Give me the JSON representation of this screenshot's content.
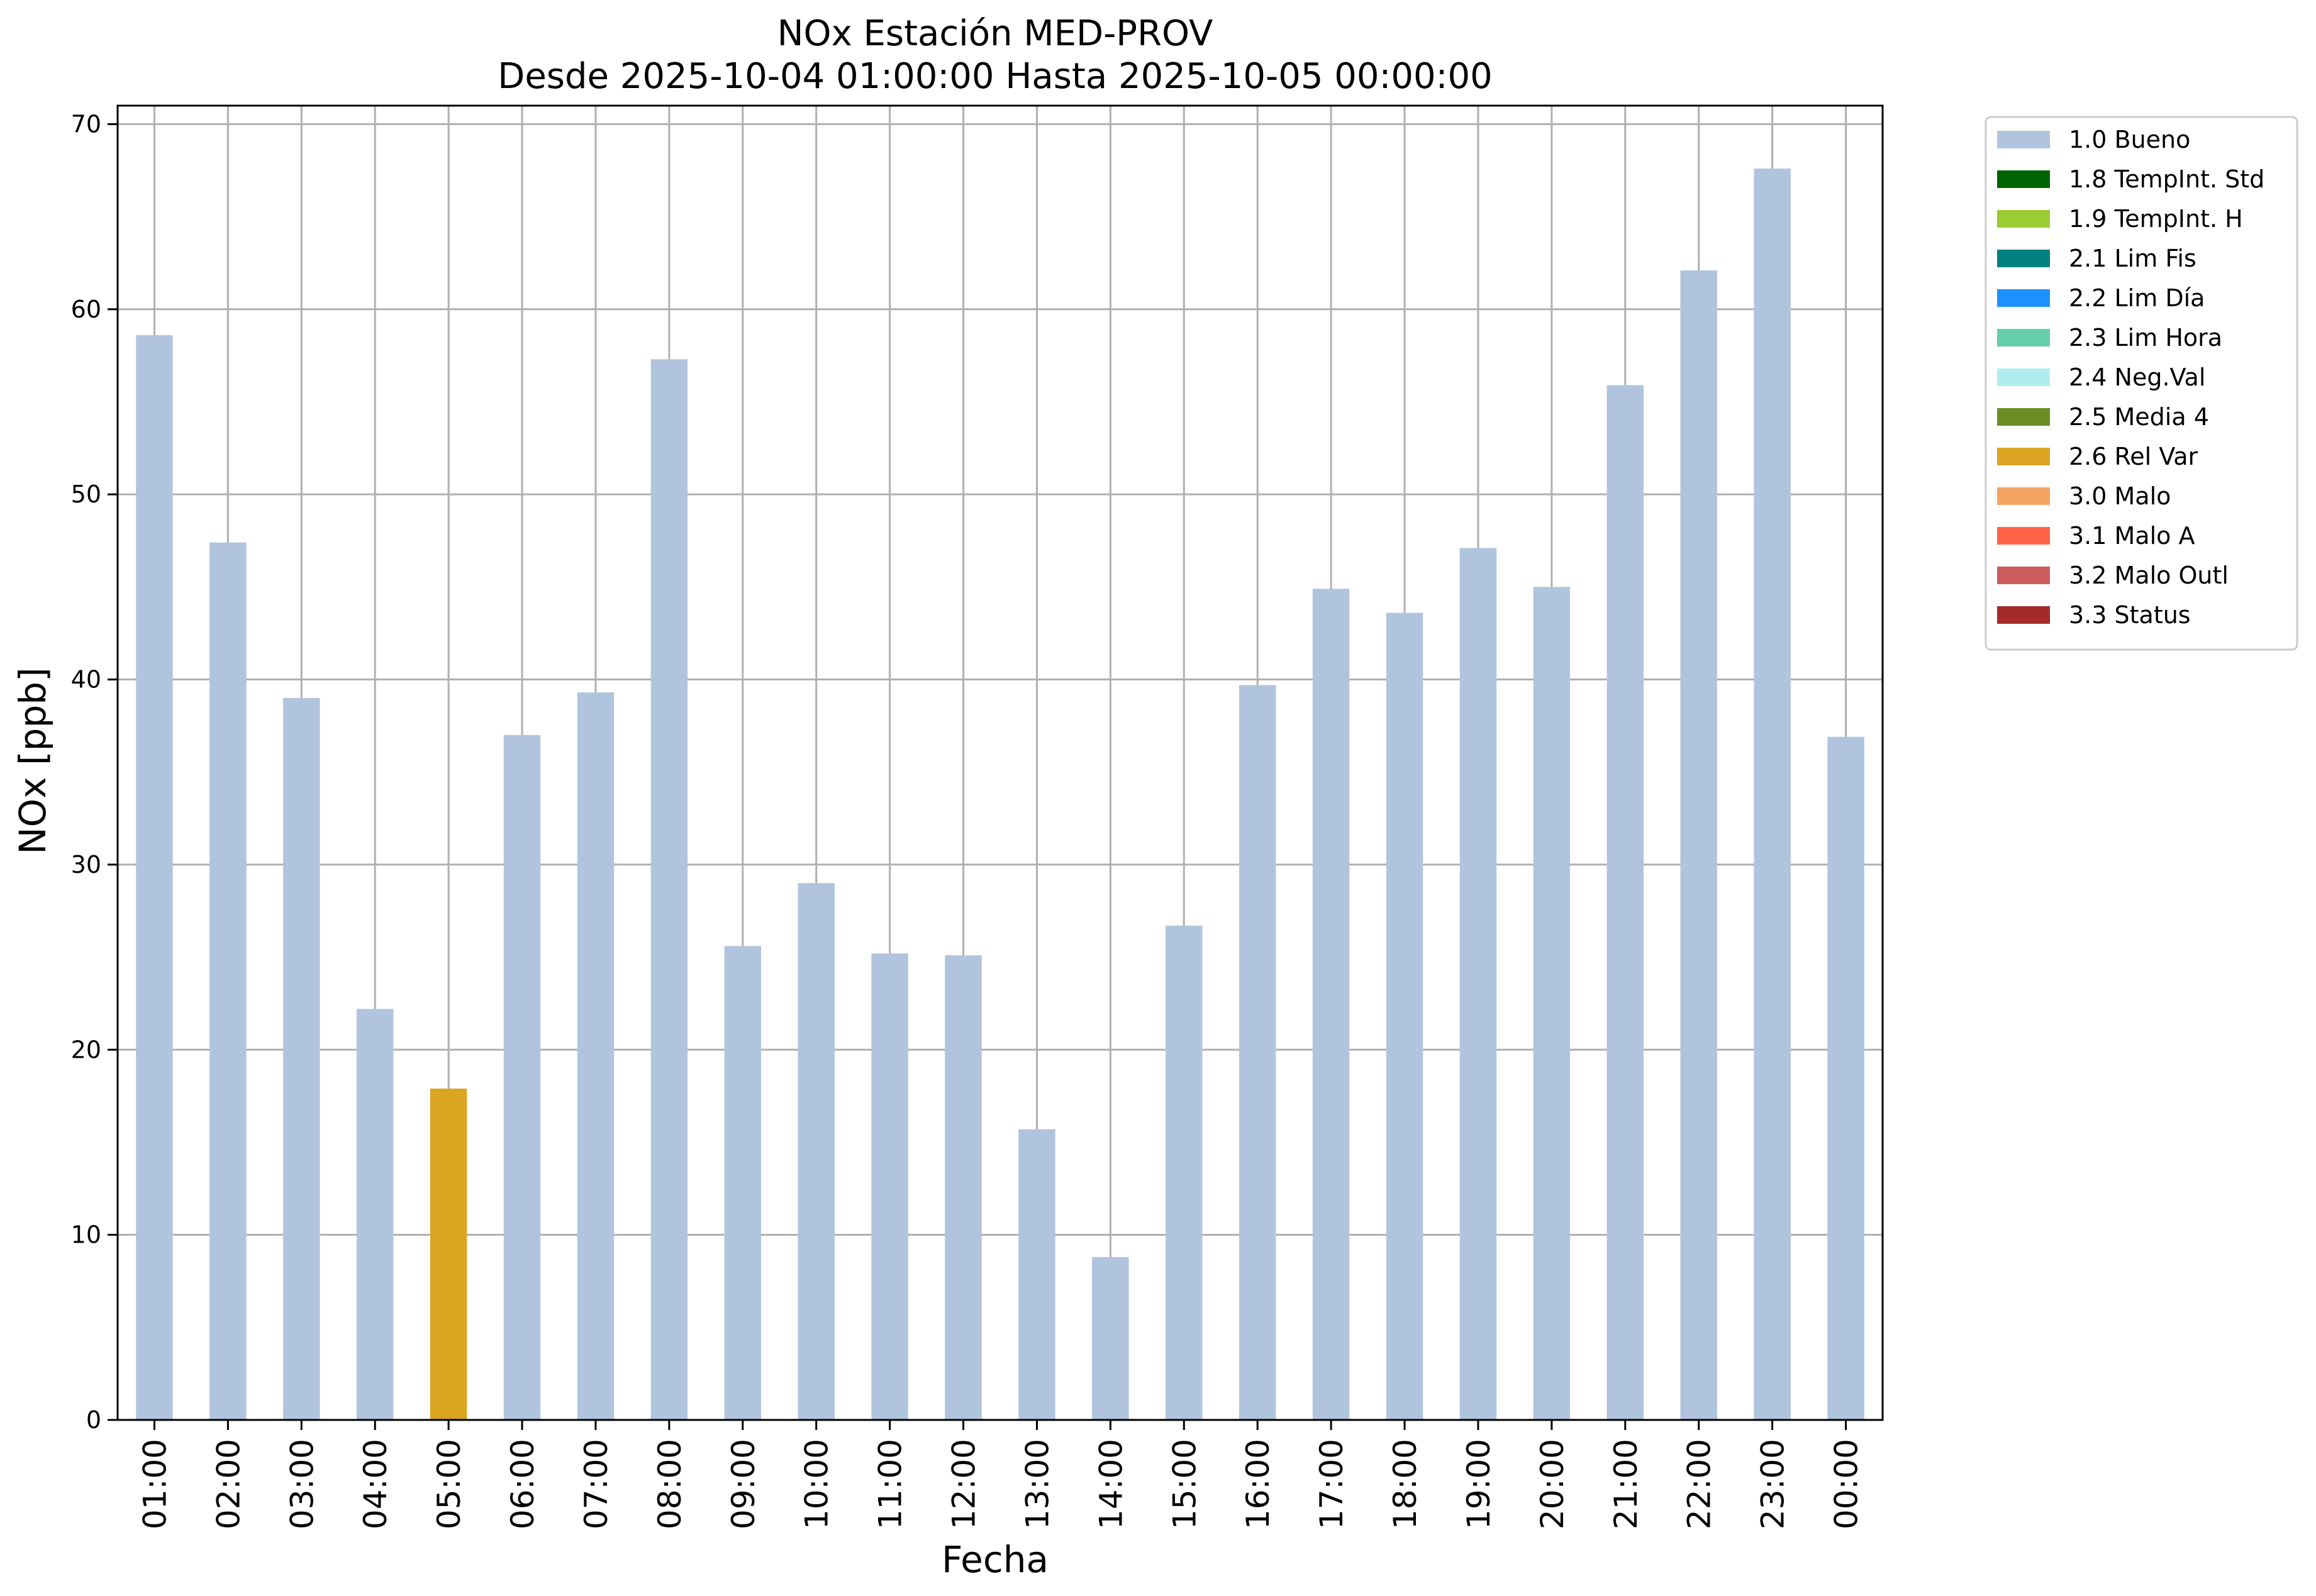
{
  "chart_data": {
    "type": "bar",
    "title": [
      "NOx Estación MED-PROV",
      "Desde 2025-10-04 01:00:00 Hasta 2025-10-05 00:00:00"
    ],
    "xlabel": "Fecha",
    "ylabel": "NOx [ppb]",
    "ylim": [
      0,
      71
    ],
    "yticks": [
      0,
      10,
      20,
      30,
      40,
      50,
      60,
      70
    ],
    "grid": true,
    "legend_placement": "outside upper right",
    "categories": [
      "01:00",
      "02:00",
      "03:00",
      "04:00",
      "05:00",
      "06:00",
      "07:00",
      "08:00",
      "09:00",
      "10:00",
      "11:00",
      "12:00",
      "13:00",
      "14:00",
      "15:00",
      "16:00",
      "17:00",
      "18:00",
      "19:00",
      "20:00",
      "21:00",
      "22:00",
      "23:00",
      "00:00"
    ],
    "values": [
      58.6,
      47.4,
      39.0,
      22.2,
      17.9,
      37.0,
      39.3,
      57.3,
      25.6,
      29.0,
      25.2,
      25.1,
      15.7,
      8.8,
      26.7,
      39.7,
      44.9,
      43.6,
      47.1,
      45.0,
      55.9,
      62.1,
      67.6,
      36.9
    ],
    "flags": [
      "1.0 Bueno",
      "1.0 Bueno",
      "1.0 Bueno",
      "1.0 Bueno",
      "2.6 Rel Var",
      "1.0 Bueno",
      "1.0 Bueno",
      "1.0 Bueno",
      "1.0 Bueno",
      "1.0 Bueno",
      "1.0 Bueno",
      "1.0 Bueno",
      "1.0 Bueno",
      "1.0 Bueno",
      "1.0 Bueno",
      "1.0 Bueno",
      "1.0 Bueno",
      "1.0 Bueno",
      "1.0 Bueno",
      "1.0 Bueno",
      "1.0 Bueno",
      "1.0 Bueno",
      "1.0 Bueno",
      "1.0 Bueno"
    ],
    "legend": [
      {
        "label": "1.0 Bueno",
        "color": "#b0c4de"
      },
      {
        "label": "1.8 TempInt. Std",
        "color": "#006400"
      },
      {
        "label": "1.9 TempInt. H",
        "color": "#9acd32"
      },
      {
        "label": "2.1 Lim Fis",
        "color": "#008080"
      },
      {
        "label": "2.2 Lim Día",
        "color": "#1e90ff"
      },
      {
        "label": "2.3 Lim Hora",
        "color": "#66cdaa"
      },
      {
        "label": "2.4 Neg.Val",
        "color": "#afeeee"
      },
      {
        "label": "2.5 Media 4",
        "color": "#6b8e23"
      },
      {
        "label": "2.6 Rel Var",
        "color": "#daa520"
      },
      {
        "label": "3.0 Malo",
        "color": "#f4a460"
      },
      {
        "label": "3.1 Malo A",
        "color": "#ff6347"
      },
      {
        "label": "3.2 Malo Outl",
        "color": "#cd5c5c"
      },
      {
        "label": "3.3 Status",
        "color": "#a52a2a"
      }
    ]
  }
}
